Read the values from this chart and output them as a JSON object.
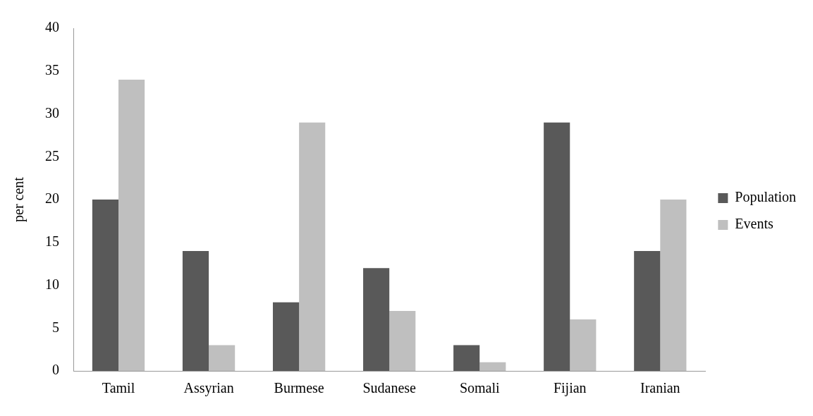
{
  "chart_data": {
    "type": "bar",
    "ylabel": "per cent",
    "categories": [
      "Tamil",
      "Assyrian",
      "Burmese",
      "Sudanese",
      "Somali",
      "Fijian",
      "Iranian"
    ],
    "series": [
      {
        "name": "Population",
        "color": "#595959",
        "values": [
          20,
          14,
          8,
          12,
          3,
          29,
          14
        ]
      },
      {
        "name": "Events",
        "color": "#bfbfbf",
        "values": [
          34,
          3,
          29,
          7,
          1,
          6,
          20
        ]
      }
    ],
    "ylim": [
      0,
      40
    ],
    "yticks": [
      0,
      5,
      10,
      15,
      20,
      25,
      30,
      35,
      40
    ],
    "grid": false,
    "legend": "right"
  }
}
